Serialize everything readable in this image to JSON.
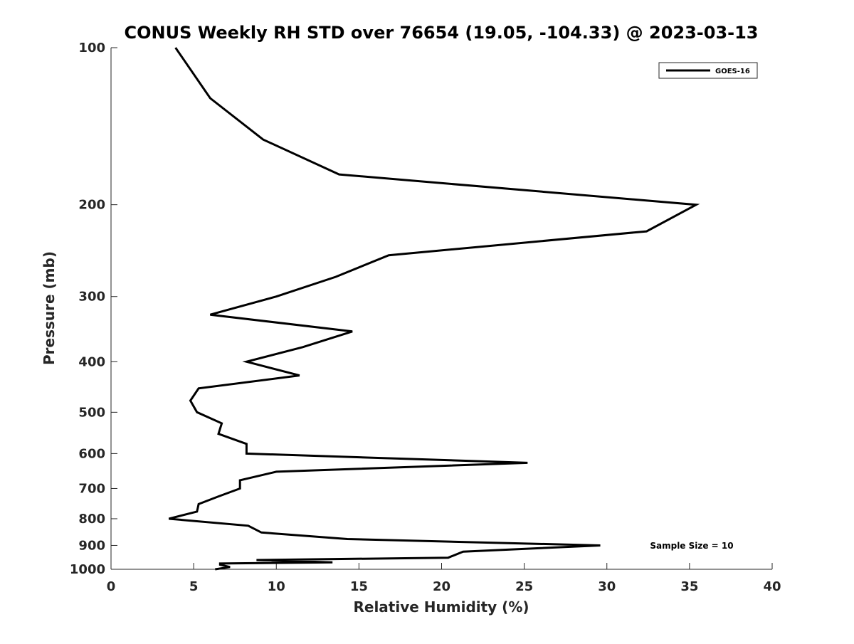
{
  "chart_data": {
    "type": "line",
    "title": "CONUS Weekly RH STD over 76654 (19.05, -104.33) @ 2023-03-13",
    "xlabel": "Relative Humidity (%)",
    "ylabel": "Pressure (mb)",
    "xlim": [
      0,
      40
    ],
    "ylim": [
      100,
      1000
    ],
    "y_scale": "log",
    "y_reversed": true,
    "xticks": [
      0,
      5,
      10,
      15,
      20,
      25,
      30,
      35,
      40
    ],
    "yticks": [
      100,
      200,
      300,
      400,
      500,
      600,
      700,
      800,
      900,
      1000
    ],
    "grid": false,
    "legend": {
      "placement": "top-right",
      "entries": [
        "GOES-16"
      ]
    },
    "annotation": "Sample Size = 10",
    "series": [
      {
        "name": "GOES-16",
        "color": "#000000",
        "points": [
          [
            3.9,
            100
          ],
          [
            6.0,
            125
          ],
          [
            9.2,
            150
          ],
          [
            13.8,
            175
          ],
          [
            35.4,
            200
          ],
          [
            32.4,
            225
          ],
          [
            16.8,
            250
          ],
          [
            13.6,
            275
          ],
          [
            10.0,
            300
          ],
          [
            6.0,
            325
          ],
          [
            14.6,
            350
          ],
          [
            11.6,
            375
          ],
          [
            8.2,
            400
          ],
          [
            11.4,
            425
          ],
          [
            5.3,
            450
          ],
          [
            4.8,
            475
          ],
          [
            5.2,
            500
          ],
          [
            6.7,
            525
          ],
          [
            6.5,
            550
          ],
          [
            8.2,
            575
          ],
          [
            8.2,
            600
          ],
          [
            25.2,
            625
          ],
          [
            10.0,
            650
          ],
          [
            7.8,
            675
          ],
          [
            7.8,
            700
          ],
          [
            6.5,
            725
          ],
          [
            5.3,
            750
          ],
          [
            5.2,
            775
          ],
          [
            3.5,
            800
          ],
          [
            8.3,
            825
          ],
          [
            9.1,
            850
          ],
          [
            14.3,
            875
          ],
          [
            29.6,
            900
          ],
          [
            21.3,
            925
          ],
          [
            20.4,
            950
          ],
          [
            8.8,
            960
          ],
          [
            13.4,
            970
          ],
          [
            6.6,
            975
          ],
          [
            6.6,
            980
          ],
          [
            7.2,
            990
          ],
          [
            6.3,
            1000
          ]
        ]
      }
    ]
  }
}
